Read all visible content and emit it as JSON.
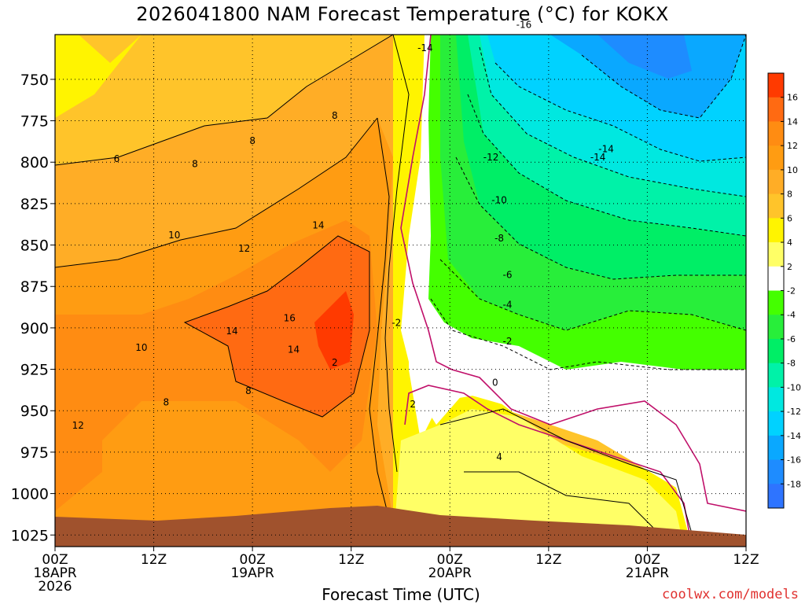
{
  "chart_data": {
    "type": "heatmap",
    "title": "2026041800 NAM Forecast Temperature (°C) for KOKX",
    "xlabel": "Forecast Time (UTC)",
    "ylabel": "",
    "x_ticks": [
      {
        "hour": 0,
        "lines": [
          "00Z",
          "18APR",
          "2026"
        ]
      },
      {
        "hour": 12,
        "lines": [
          "12Z"
        ]
      },
      {
        "hour": 24,
        "lines": [
          "00Z",
          "19APR"
        ]
      },
      {
        "hour": 36,
        "lines": [
          "12Z"
        ]
      },
      {
        "hour": 48,
        "lines": [
          "00Z",
          "20APR"
        ]
      },
      {
        "hour": 60,
        "lines": [
          "12Z"
        ]
      },
      {
        "hour": 72,
        "lines": [
          "00Z",
          "21APR"
        ]
      },
      {
        "hour": 84,
        "lines": [
          "12Z"
        ]
      }
    ],
    "xlim": [
      0,
      84
    ],
    "y_ticks": [
      750,
      775,
      800,
      825,
      850,
      875,
      900,
      925,
      950,
      975,
      1000,
      1025
    ],
    "ylim": [
      1032,
      723
    ],
    "y_scale": "linear",
    "y_inverted": true,
    "grid": true,
    "colorbar": {
      "labels": [
        "16",
        "14",
        "12",
        "10",
        "8",
        "6",
        "4",
        "2",
        "-2",
        "-4",
        "-6",
        "-8",
        "-10",
        "-12",
        "-14",
        "-16",
        "-18"
      ],
      "colors": [
        "#ff3a00",
        "#ff6a12",
        "#ff8c12",
        "#ff9c12",
        "#ffad26",
        "#ffc42a",
        "#fff400",
        "#ffff66",
        "#ffffff",
        "#44ff00",
        "#28ee3a",
        "#00ee66",
        "#00f2a8",
        "#00e8e0",
        "#00d2ff",
        "#0aa8ff",
        "#1e8cff",
        "#2e74ff"
      ]
    },
    "contour_labels": [
      {
        "value": "8",
        "hour": 34,
        "p": 772
      },
      {
        "value": "8",
        "hour": 24,
        "p": 787
      },
      {
        "value": "8",
        "hour": 17,
        "p": 801
      },
      {
        "value": "6",
        "hour": 7.5,
        "p": 798
      },
      {
        "value": "10",
        "hour": 14.5,
        "p": 844
      },
      {
        "value": "12",
        "hour": 23,
        "p": 852
      },
      {
        "value": "14",
        "hour": 32,
        "p": 838
      },
      {
        "value": "16",
        "hour": 28.5,
        "p": 894
      },
      {
        "value": "14",
        "hour": 21.5,
        "p": 902
      },
      {
        "value": "14",
        "hour": 29,
        "p": 913
      },
      {
        "value": "10",
        "hour": 10.5,
        "p": 912
      },
      {
        "value": "8",
        "hour": 23.5,
        "p": 938
      },
      {
        "value": "8",
        "hour": 13.5,
        "p": 945
      },
      {
        "value": "12",
        "hour": 2.8,
        "p": 959
      },
      {
        "value": "2",
        "hour": 34,
        "p": 921
      },
      {
        "value": "-2",
        "hour": 41.5,
        "p": 897
      },
      {
        "value": "2",
        "hour": 43.5,
        "p": 946
      },
      {
        "value": "-14",
        "hour": 45,
        "p": 731
      },
      {
        "value": "-16",
        "hour": 57,
        "p": 717
      },
      {
        "value": "-14",
        "hour": 67,
        "p": 792
      },
      {
        "value": "-12",
        "hour": 53,
        "p": 797
      },
      {
        "value": "-14",
        "hour": 66,
        "p": 797
      },
      {
        "value": "-10",
        "hour": 54,
        "p": 823
      },
      {
        "value": "-8",
        "hour": 54,
        "p": 846
      },
      {
        "value": "-6",
        "hour": 55,
        "p": 868
      },
      {
        "value": "-4",
        "hour": 55,
        "p": 886
      },
      {
        "value": "-2",
        "hour": 55,
        "p": 908
      },
      {
        "value": "0",
        "hour": 53.5,
        "p": 933
      },
      {
        "value": "4",
        "hour": 54,
        "p": 978
      }
    ]
  },
  "credit": "coolwx.com/models"
}
